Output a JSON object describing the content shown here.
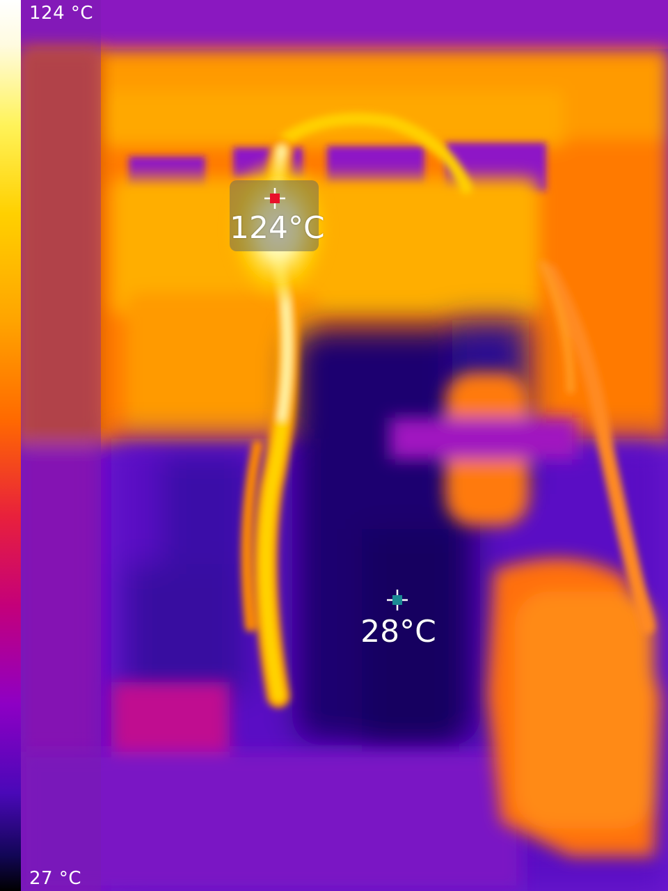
{
  "scale": {
    "max_label": "124 °C",
    "min_label": "27 °C"
  },
  "spots": {
    "hot": {
      "label": "124°C",
      "marker_color": "#e8102a"
    },
    "cold": {
      "label": "28°C",
      "marker_color": "#1b8a94"
    }
  },
  "palette": {
    "hottest": "#ffffff",
    "hot": "#ffd000",
    "warm": "#ff9a00",
    "mid": "#e8203c",
    "cool": "#8e00c4",
    "coldest": "#10064a"
  }
}
